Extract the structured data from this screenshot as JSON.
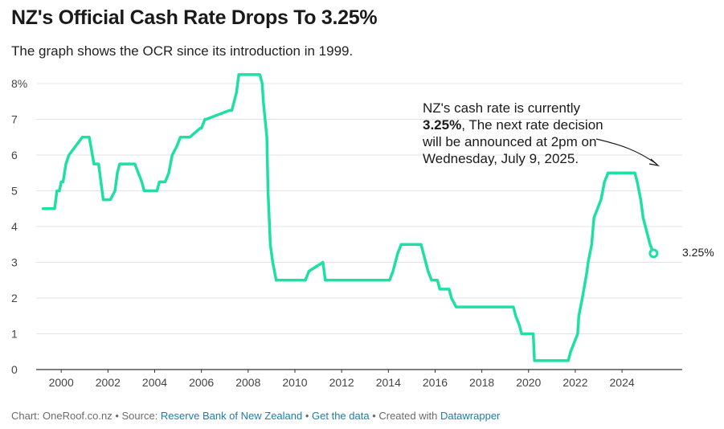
{
  "header": {
    "title": "NZ's Official Cash Rate Drops To 3.25%",
    "subtitle": "The graph shows the OCR since its introduction in 1999."
  },
  "annotation": {
    "before": "NZ's cash rate is currently ",
    "bold": "3.25%",
    "after": ", The next rate decision will be announced at 2pm on Wednesday, July 9, 2025."
  },
  "end_label": "3.25%",
  "footer": {
    "prefix": "Chart: OneRoof.co.nz • Source: ",
    "source": "Reserve Bank of New Zealand",
    "sep1": " • ",
    "get_data": "Get the data",
    "sep2": " • Created with ",
    "tool": "Datawrapper"
  },
  "colors": {
    "line": "#1fe0a4",
    "grid": "#e3e3e3",
    "axis": "#333333",
    "link": "#1a7fa8"
  },
  "chart_data": {
    "type": "line",
    "title": "NZ's Official Cash Rate Drops To 3.25%",
    "xlabel": "",
    "ylabel": "",
    "xlim": [
      1999.1,
      2025.6
    ],
    "ylim": [
      0,
      8
    ],
    "grid": true,
    "y_ticks": [
      0,
      1,
      2,
      3,
      4,
      5,
      6,
      7,
      8
    ],
    "y_tick_labels": [
      "0",
      "1",
      "2",
      "3",
      "4",
      "5",
      "6",
      "7",
      "8%"
    ],
    "x_ticks": [
      2000,
      2002,
      2004,
      2006,
      2008,
      2010,
      2012,
      2014,
      2016,
      2018,
      2020,
      2022,
      2024
    ],
    "x_tick_labels": [
      "2000",
      "2002",
      "2004",
      "2006",
      "2008",
      "2010",
      "2012",
      "2014",
      "2016",
      "2018",
      "2020",
      "2022",
      "2024"
    ],
    "series": [
      {
        "x": [
          1999.22,
          1999.72,
          1999.82,
          1999.92,
          2000.0,
          2000.08,
          2000.2,
          2000.33,
          2000.9,
          2001.2,
          2001.4,
          2001.5,
          2001.6,
          2001.7,
          2001.8,
          2001.9,
          2002.1,
          2002.3,
          2002.4,
          2002.5,
          2003.15,
          2003.3,
          2003.45,
          2003.55,
          2003.6,
          2004.1,
          2004.2,
          2004.45,
          2004.6,
          2004.75,
          2004.95,
          2005.1,
          2005.5,
          2005.95,
          2006.0,
          2006.15,
          2006.2,
          2007.2,
          2007.3,
          2007.5,
          2007.55,
          2007.6,
          2008.5,
          2008.6,
          2008.65,
          2008.8,
          2008.85,
          2008.95,
          2009.05,
          2009.2,
          2009.3,
          2010.45,
          2010.6,
          2011.2,
          2011.3,
          2014.05,
          2014.2,
          2014.4,
          2014.55,
          2015.4,
          2015.5,
          2015.6,
          2015.7,
          2015.85,
          2016.1,
          2016.2,
          2016.6,
          2016.7,
          2016.9,
          2019.35,
          2019.45,
          2019.6,
          2019.7,
          2020.2,
          2020.25,
          2021.7,
          2021.8,
          2021.95,
          2022.1,
          2022.15,
          2022.3,
          2022.5,
          2022.55,
          2022.7,
          2022.8,
          2023.1,
          2023.25,
          2023.4,
          2024.55,
          2024.65,
          2024.8,
          2024.9,
          2025.1,
          2025.2,
          2025.35
        ],
        "values": [
          4.5,
          4.5,
          5.0,
          5.0,
          5.25,
          5.25,
          5.75,
          6.0,
          6.5,
          6.5,
          5.75,
          5.75,
          5.75,
          5.25,
          4.75,
          4.75,
          4.75,
          5.0,
          5.5,
          5.75,
          5.75,
          5.5,
          5.25,
          5.0,
          5.0,
          5.0,
          5.25,
          5.25,
          5.5,
          6.0,
          6.25,
          6.5,
          6.5,
          6.75,
          6.75,
          7.0,
          7.0,
          7.25,
          7.25,
          7.75,
          8.0,
          8.25,
          8.25,
          8.0,
          7.5,
          6.5,
          5.0,
          3.5,
          3.0,
          2.5,
          2.5,
          2.5,
          2.75,
          3.0,
          2.5,
          2.5,
          2.75,
          3.25,
          3.5,
          3.5,
          3.25,
          3.0,
          2.75,
          2.5,
          2.5,
          2.25,
          2.25,
          2.0,
          1.75,
          1.75,
          1.5,
          1.25,
          1.0,
          1.0,
          0.25,
          0.25,
          0.5,
          0.75,
          1.0,
          1.5,
          2.0,
          2.75,
          3.0,
          3.5,
          4.25,
          4.75,
          5.25,
          5.5,
          5.5,
          5.25,
          4.75,
          4.25,
          3.75,
          3.5,
          3.25
        ]
      }
    ]
  }
}
